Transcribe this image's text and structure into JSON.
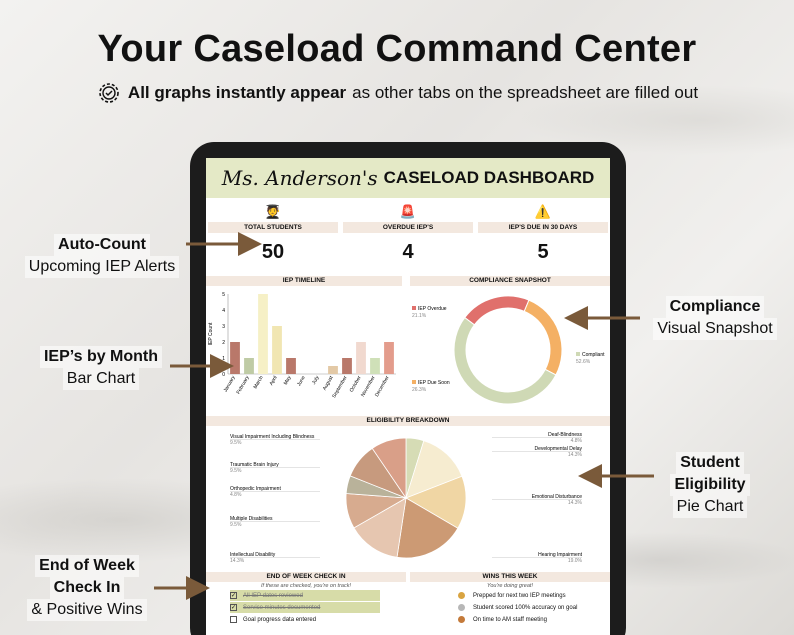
{
  "headline": "Your Caseload Command Center",
  "subline": {
    "bold": "All graphs instantly appear",
    "rest": " as other tabs on the spreadsheet are filled out"
  },
  "dashboard": {
    "name": "Ms. Anderson's",
    "title": "CASELOAD DASHBOARD",
    "stats": [
      {
        "label": "TOTAL STUDENTS",
        "value": "50",
        "emoji": "🧑‍🎓"
      },
      {
        "label": "OVERDUE IEP'S",
        "value": "4",
        "emoji": "🚨"
      },
      {
        "label": "IEP'S DUE IN 30 DAYS",
        "value": "5",
        "emoji": "⚠️"
      }
    ],
    "timeline_title": "IEP TIMELINE",
    "compliance_title": "COMPLIANCE SNAPSHOT",
    "eligibility_title": "ELIGIBILITY BREAKDOWN",
    "checkin_title": "END OF WEEK CHECK IN",
    "checkin_note": "If these are checked, you're on track!",
    "wins_title": "WINS THIS WEEK",
    "wins_note": "You're doing great!",
    "checkins": [
      {
        "label": "All IEP dates reviewed",
        "checked": true
      },
      {
        "label": "Service minutes documented",
        "checked": true
      },
      {
        "label": "Goal progress data entered",
        "checked": false
      }
    ],
    "wins": [
      "Prepped for next two IEP meetings",
      "Student scored 100% accuracy on goal",
      "On time to AM staff meeting"
    ]
  },
  "callouts": {
    "auto_count": {
      "title": "Auto-Count",
      "sub": "Upcoming IEP Alerts"
    },
    "by_month": {
      "title": "IEP’s by Month",
      "sub": "Bar Chart"
    },
    "compliance": {
      "title": "Compliance",
      "sub": "Visual Snapshot"
    },
    "eligibility": {
      "title": "Student",
      "title2": "Eligibility",
      "sub": "Pie Chart"
    },
    "end_week": {
      "title": "End of Week",
      "title2": "Check In",
      "sub": "& Positive Wins"
    }
  },
  "chart_data": [
    {
      "type": "bar",
      "title": "IEP TIMELINE",
      "ylabel": "IEP Count",
      "categories": [
        "January",
        "February",
        "March",
        "April",
        "May",
        "June",
        "July",
        "August",
        "September",
        "October",
        "November",
        "December"
      ],
      "values": [
        2,
        1,
        5,
        3,
        1,
        0,
        0,
        0.5,
        1,
        2,
        1,
        2
      ],
      "colors": [
        "#b9786a",
        "#bfcba5",
        "#f6f0c6",
        "#f1e6b2",
        "#b9786a",
        "#ddd",
        "#ddd",
        "#e3c9a6",
        "#b9786a",
        "#f1d9cf",
        "#cfe0b8",
        "#e39c8c"
      ],
      "ylim": [
        0,
        5
      ]
    },
    {
      "type": "pie",
      "title": "COMPLIANCE SNAPSHOT",
      "labels": [
        "IEP Overdue",
        "IEP Due Soon",
        "Compliant"
      ],
      "values": [
        21.1,
        26.3,
        52.6
      ],
      "value_labels": [
        "21.1%",
        "26.3%",
        "52.6%"
      ],
      "colors": [
        "#e0706c",
        "#f4b064",
        "#cfd9b5"
      ]
    },
    {
      "type": "pie",
      "title": "ELIGIBILITY BREAKDOWN",
      "labels": [
        "Deaf-Blindness",
        "Developmental Delay",
        "Emotional Disturbance",
        "Hearing Impairment",
        "Intellectual Disability",
        "Multiple Disabilities",
        "Orthopedic Impairment",
        "Traumatic Brain Injury",
        "Visual Impairment Including Blindness"
      ],
      "values": [
        4.8,
        14.3,
        14.3,
        19.0,
        14.3,
        9.5,
        4.8,
        9.5,
        9.5
      ],
      "value_labels": [
        "4.8%",
        "14.3%",
        "14.3%",
        "19.0%",
        "14.3%",
        "9.5%",
        "4.8%",
        "9.5%",
        "9.5%"
      ],
      "colors": [
        "#d6dcb5",
        "#f6ecd0",
        "#f0d6a4",
        "#cc9a74",
        "#e6c6b0",
        "#d7ab8f",
        "#b9b29a",
        "#c79a7e",
        "#d99f88"
      ]
    }
  ]
}
